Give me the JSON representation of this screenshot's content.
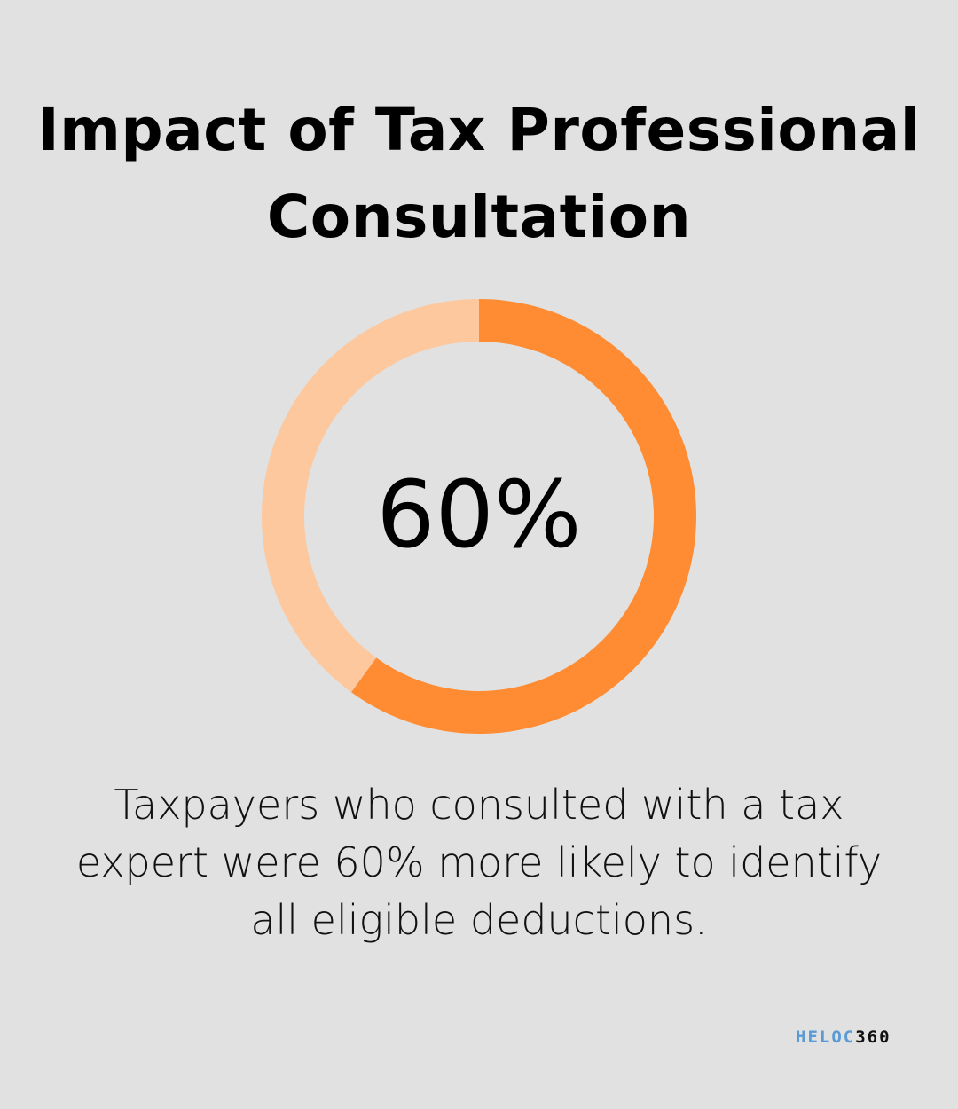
{
  "title": "Impact of Tax Professional Consultation",
  "center_label": "60%",
  "description": "Taxpayers who consulted with a tax expert were 60% more likely to identify all eligible deductions.",
  "logo": {
    "part1": "HELOC",
    "part2": "360"
  },
  "colors": {
    "background": "#e0e1e0",
    "highlight": "#ff8c33",
    "remainder": "#fdc89e",
    "logo_blue": "#5b9bd5"
  },
  "chart_data": {
    "type": "pie",
    "variant": "donut",
    "values": [
      60,
      40
    ],
    "unit": "%",
    "colors": [
      "#ff8c33",
      "#fdc89e"
    ],
    "legend": "none"
  }
}
